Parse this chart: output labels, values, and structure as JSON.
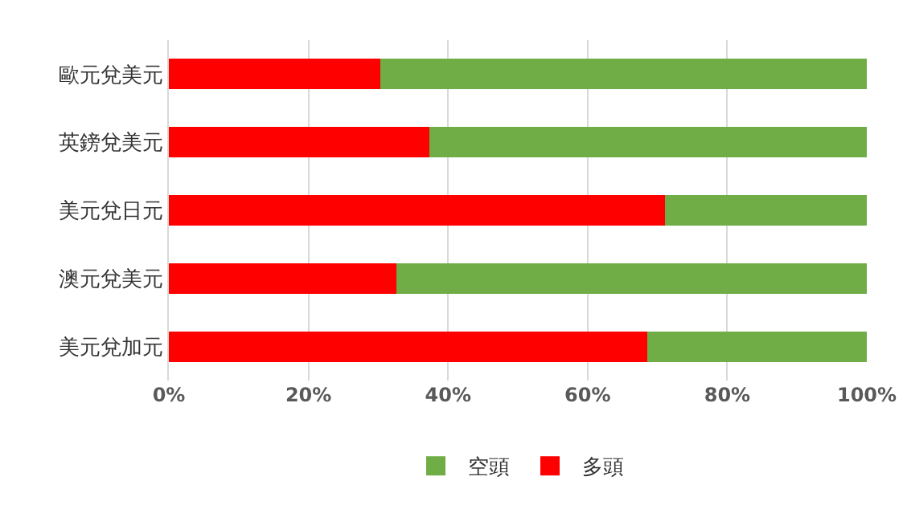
{
  "chart_data": {
    "type": "bar",
    "orientation": "horizontal",
    "stacked": true,
    "categories": [
      "歐元兌美元",
      "英鎊兌美元",
      "美元兌日元",
      "澳元兌美元",
      "美元兌加元"
    ],
    "series": [
      {
        "name": "多頭",
        "color": "#ff0000",
        "values": [
          30.3,
          37.3,
          71.1,
          32.6,
          68.5
        ]
      },
      {
        "name": "空頭",
        "color": "#70ad47",
        "values": [
          69.7,
          62.7,
          28.9,
          67.4,
          31.5
        ]
      }
    ],
    "xlim": [
      0,
      100
    ],
    "xticks": [
      {
        "value": 0,
        "label": "0%"
      },
      {
        "value": 20,
        "label": "20%"
      },
      {
        "value": 40,
        "label": "40%"
      },
      {
        "value": 60,
        "label": "60%"
      },
      {
        "value": 80,
        "label": "80%"
      },
      {
        "value": 100,
        "label": "100%"
      }
    ],
    "grid": "x",
    "legend": "bottom"
  }
}
